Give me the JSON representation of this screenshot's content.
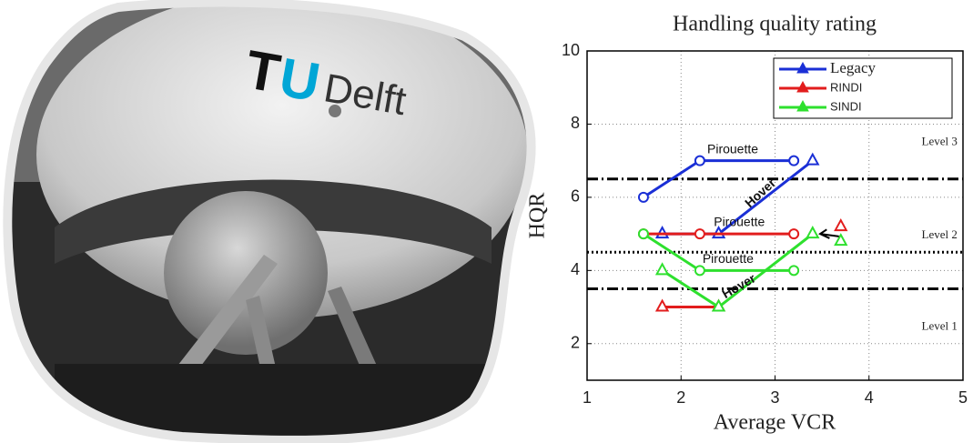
{
  "logo": {
    "t": "T",
    "u": "U",
    "delft": "Delft"
  },
  "chart_data": {
    "type": "line",
    "title": "Handling quality rating",
    "x_label": "Average VCR",
    "y_label": "HQR",
    "xlim": [
      1,
      5
    ],
    "xticks": [
      1,
      2,
      3,
      4,
      5
    ],
    "ylim": [
      1,
      10
    ],
    "yticks": [
      2,
      4,
      6,
      8,
      10
    ],
    "grid": true,
    "legend": "upper right",
    "series": [
      {
        "name": "Legacy",
        "color": "#1a2fd6",
        "pirouette": {
          "x": [
            1.6,
            2.2,
            3.2
          ],
          "values": [
            6,
            7,
            7
          ]
        },
        "hover": {
          "x": [
            1.8,
            2.4,
            3.4
          ],
          "values": [
            5,
            5,
            7
          ]
        }
      },
      {
        "name": "RINDI",
        "color": "#e21d1d",
        "pirouette": {
          "x": [
            1.6,
            2.2,
            3.2
          ],
          "values": [
            5,
            5,
            5
          ]
        },
        "hover": {
          "x": [
            1.8,
            2.4,
            null,
            3.7
          ],
          "values": [
            3,
            3,
            null,
            5.2
          ]
        }
      },
      {
        "name": "SINDI",
        "color": "#2ee02e",
        "pirouette": {
          "x": [
            1.6,
            2.2,
            3.2
          ],
          "values": [
            5,
            4,
            4
          ]
        },
        "hover": {
          "x": [
            1.8,
            2.4,
            3.4,
            null,
            3.7
          ],
          "values": [
            4,
            3,
            5,
            null,
            4.8
          ]
        }
      }
    ],
    "reference_lines": [
      {
        "value": 6.5,
        "style": "dashdot"
      },
      {
        "value": 4.5,
        "style": "dotted"
      },
      {
        "value": 3.5,
        "style": "dashdot"
      }
    ],
    "level_labels": [
      "Level 3",
      "Level 2",
      "Level 1"
    ],
    "annotations": [
      "Pirouette",
      "Hover",
      "Pirouette",
      "Pirouette",
      "Hover"
    ]
  }
}
